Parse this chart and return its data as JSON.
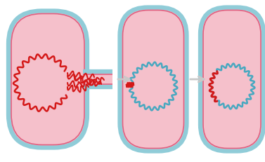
{
  "bg_color": "#ffffff",
  "cell_fill": "#f5c0cb",
  "cell_fill_light": "#f9d0d8",
  "cell_border_outer": "#90ccd8",
  "cell_border_inner": "#e06080",
  "arrow_color": "#c8c8c8",
  "dna_red": "#d41818",
  "plasmid_blue": "#48a8c0",
  "fig_w": 3.77,
  "fig_h": 2.31,
  "dpi": 100
}
